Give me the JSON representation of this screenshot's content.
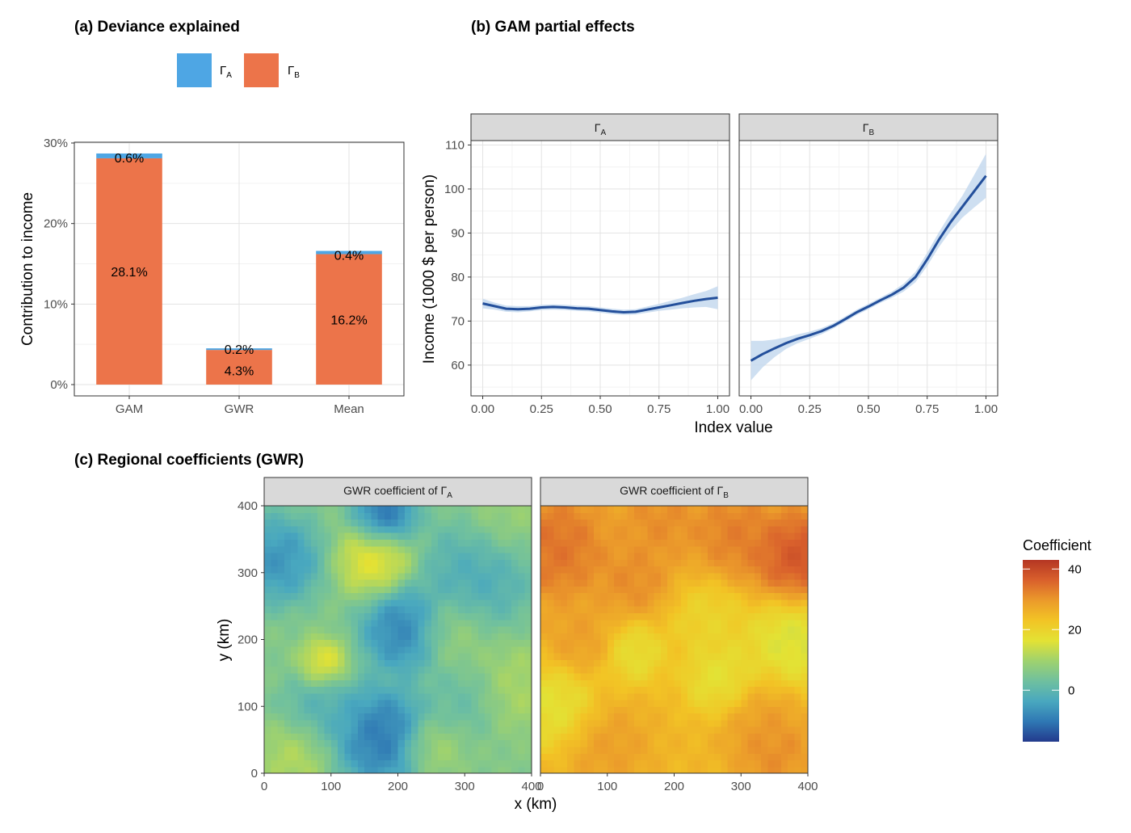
{
  "panels": {
    "a": {
      "title": "(a) Deviance explained"
    },
    "b": {
      "title": "(b) GAM partial effects"
    },
    "c": {
      "title": "(c) Regional coefficients (GWR)"
    }
  },
  "legend_a": {
    "items": [
      {
        "label": "Γ",
        "sub": "A",
        "color": "#4ea6e4"
      },
      {
        "label": "Γ",
        "sub": "B",
        "color": "#ec744a"
      }
    ]
  },
  "legend_c": {
    "title": "Coefficient",
    "ticks": [
      "40",
      "20",
      "0"
    ],
    "colors": [
      "#233a8d",
      "#2f78b4",
      "#49a8bf",
      "#6fc09f",
      "#9fd26e",
      "#e3e234",
      "#f2c425",
      "#eb9a2b",
      "#d9602c",
      "#b43623"
    ]
  },
  "facets_b": [
    {
      "strip": "Γ",
      "sub": "A"
    },
    {
      "strip": "Γ",
      "sub": "B"
    }
  ],
  "facets_c": [
    {
      "strip": "GWR coefficient of Γ",
      "sub": "A"
    },
    {
      "strip": "GWR coefficient of Γ",
      "sub": "B"
    }
  ],
  "chart_data": [
    {
      "type": "bar",
      "title": "(a) Deviance explained",
      "xlabel": "",
      "ylabel": "Contribution to income",
      "categories": [
        "GAM",
        "GWR",
        "Mean"
      ],
      "stacked": true,
      "ylim": [
        0,
        30
      ],
      "yticks": [
        "0%",
        "10%",
        "20%",
        "30%"
      ],
      "series": [
        {
          "name": "ΓB",
          "values": [
            28.1,
            4.3,
            16.2
          ],
          "labels": [
            "28.1%",
            "4.3%",
            "16.2%"
          ]
        },
        {
          "name": "ΓA",
          "values": [
            0.6,
            0.2,
            0.4
          ],
          "labels": [
            "0.6%",
            "0.2%",
            "0.4%"
          ]
        }
      ],
      "legend": "top",
      "grid": true
    },
    {
      "type": "line",
      "title": "(b) GAM partial effects",
      "xlabel": "Index value",
      "ylabel": "Income (1000 $ per person)",
      "xticks": [
        "0.00",
        "0.25",
        "0.50",
        "0.75",
        "1.00"
      ],
      "yticks": [
        "60",
        "70",
        "80",
        "90",
        "100",
        "110"
      ],
      "xlim": [
        -0.05,
        1.05
      ],
      "ylim": [
        53,
        111
      ],
      "grid": true,
      "facets": [
        {
          "name": "ΓA",
          "x": [
            0,
            0.05,
            0.1,
            0.15,
            0.2,
            0.25,
            0.3,
            0.35,
            0.4,
            0.45,
            0.5,
            0.55,
            0.6,
            0.65,
            0.7,
            0.75,
            0.8,
            0.85,
            0.9,
            0.95,
            1.0
          ],
          "y": [
            74.0,
            73.4,
            72.8,
            72.7,
            72.8,
            73.1,
            73.2,
            73.1,
            72.9,
            72.8,
            72.5,
            72.2,
            72.0,
            72.1,
            72.6,
            73.1,
            73.6,
            74.1,
            74.6,
            75.0,
            75.3
          ],
          "lower": [
            72.9,
            72.6,
            72.1,
            72.0,
            72.2,
            72.5,
            72.6,
            72.5,
            72.3,
            72.2,
            71.9,
            71.6,
            71.4,
            71.5,
            71.9,
            72.3,
            72.6,
            72.9,
            73.1,
            73.2,
            72.7
          ],
          "upper": [
            75.1,
            74.2,
            73.5,
            73.4,
            73.4,
            73.7,
            73.8,
            73.7,
            73.5,
            73.4,
            73.1,
            72.8,
            72.6,
            72.7,
            73.3,
            73.9,
            74.6,
            75.3,
            76.1,
            76.8,
            77.9
          ]
        },
        {
          "name": "ΓB",
          "x": [
            0,
            0.05,
            0.1,
            0.15,
            0.2,
            0.25,
            0.3,
            0.35,
            0.4,
            0.45,
            0.5,
            0.55,
            0.6,
            0.65,
            0.7,
            0.75,
            0.8,
            0.85,
            0.9,
            0.95,
            1.0
          ],
          "y": [
            61.0,
            62.5,
            63.8,
            65.0,
            66.0,
            66.8,
            67.7,
            68.9,
            70.4,
            72.0,
            73.3,
            74.7,
            76.0,
            77.6,
            80.0,
            84.0,
            88.5,
            92.5,
            96.0,
            99.5,
            103.0
          ],
          "lower": [
            56.5,
            59.5,
            61.8,
            63.7,
            65.0,
            66.0,
            67.0,
            68.3,
            69.8,
            71.4,
            72.7,
            74.1,
            75.3,
            76.7,
            78.8,
            82.5,
            86.8,
            90.5,
            93.5,
            95.8,
            98.0
          ],
          "upper": [
            65.5,
            65.5,
            65.8,
            66.3,
            67.0,
            67.6,
            68.4,
            69.5,
            71.0,
            72.6,
            73.9,
            75.3,
            76.7,
            78.5,
            81.2,
            85.5,
            90.2,
            94.5,
            98.5,
            103.2,
            108.0
          ]
        }
      ]
    },
    {
      "type": "heatmap",
      "title": "(c) Regional coefficients (GWR)",
      "xlabel": "x (km)",
      "ylabel": "y (km)",
      "xticks": [
        "0",
        "100",
        "200",
        "300",
        "400"
      ],
      "yticks": [
        "0",
        "100",
        "200",
        "300",
        "400"
      ],
      "xlim": [
        0,
        400
      ],
      "ylim": [
        0,
        400
      ],
      "legend_title": "Coefficient",
      "color_range": [
        -17,
        43
      ],
      "facets": [
        {
          "name": "GWR coefficient of ΓA",
          "base": 6,
          "blobs": [
            [
              180,
              385,
              -16,
              25
            ],
            [
              20,
              320,
              -10,
              35
            ],
            [
              210,
              215,
              -13,
              35
            ],
            [
              175,
              55,
              -15,
              40
            ],
            [
              165,
              320,
              20,
              30
            ],
            [
              90,
              165,
              20,
              20
            ],
            [
              320,
              300,
              -5,
              45
            ],
            [
              90,
              90,
              -3,
              35
            ],
            [
              380,
              130,
              12,
              35
            ],
            [
              280,
              210,
              10,
              30
            ],
            [
              50,
              30,
              14,
              30
            ],
            [
              250,
              40,
              12,
              25
            ],
            [
              360,
              380,
              10,
              35
            ],
            [
              300,
              110,
              1,
              30
            ]
          ]
        },
        {
          "name": "GWR coefficient of ΓB",
          "base": 25,
          "blobs": [
            [
              390,
              320,
              42,
              40
            ],
            [
              20,
              340,
              37,
              45
            ],
            [
              290,
              360,
              35,
              35
            ],
            [
              140,
              290,
              33,
              30
            ],
            [
              180,
              380,
              33,
              35
            ],
            [
              380,
              200,
              12,
              40
            ],
            [
              20,
              100,
              14,
              35
            ],
            [
              270,
              140,
              14,
              30
            ],
            [
              140,
              180,
              15,
              25
            ],
            [
              100,
              40,
              30,
              35
            ],
            [
              330,
              80,
              30,
              35
            ],
            [
              250,
              230,
              18,
              30
            ],
            [
              60,
              200,
              30,
              30
            ],
            [
              350,
              30,
              33,
              30
            ]
          ]
        }
      ]
    }
  ]
}
